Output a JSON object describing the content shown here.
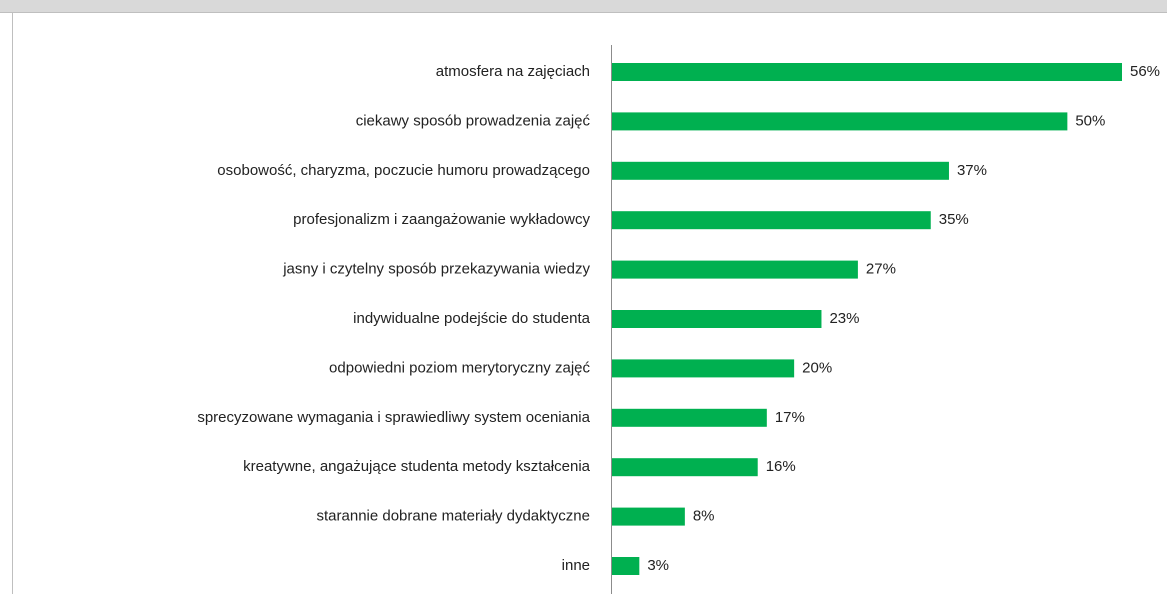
{
  "chart_data": {
    "type": "bar",
    "orientation": "horizontal",
    "categories": [
      "atmosfera na zajęciach",
      "ciekawy sposób prowadzenia zajęć",
      "osobowość, charyzma, poczucie humoru prowadzącego",
      "profesjonalizm i zaangażowanie wykładowcy",
      "jasny i czytelny sposób przekazywania wiedzy",
      "indywidualne podejście do studenta",
      "odpowiedni poziom merytoryczny zajęć",
      "sprecyzowane wymagania i sprawiedliwy system oceniania",
      "kreatywne, angażujące studenta metody kształcenia",
      "starannie dobrane materiały dydaktyczne",
      "inne"
    ],
    "values": [
      56,
      50,
      37,
      35,
      27,
      23,
      20,
      17,
      16,
      8,
      3
    ],
    "value_labels": [
      "56%",
      "50%",
      "37%",
      "35%",
      "27%",
      "23%",
      "20%",
      "17%",
      "16%",
      "8%",
      "3%"
    ],
    "color": "#00b050"
  }
}
